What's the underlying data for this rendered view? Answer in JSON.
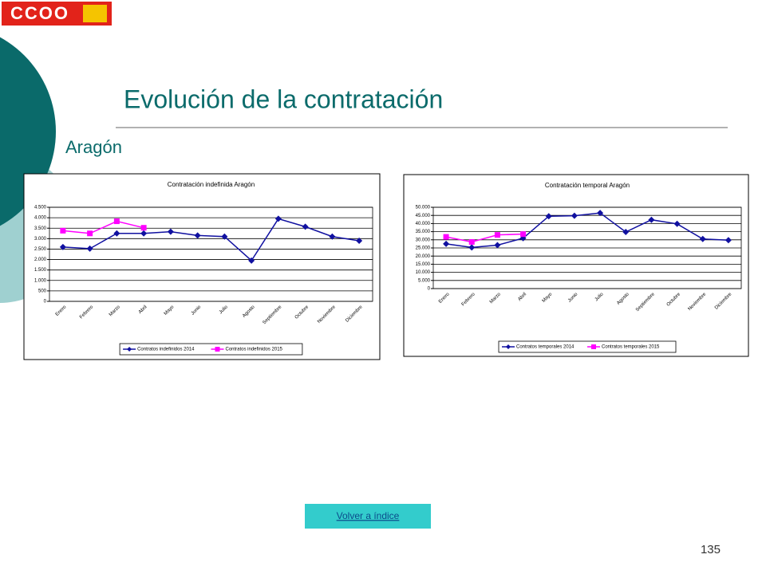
{
  "logo": "CCOO",
  "header": {
    "title": "Evolución de la contratación",
    "subtitle": "Aragón"
  },
  "chart_data": [
    {
      "type": "line",
      "title": "Contratación indefinida Aragón",
      "categories": [
        "Enero",
        "Febrero",
        "Marzo",
        "Abril",
        "Mayo",
        "Junio",
        "Julio",
        "Agosto",
        "Septiembre",
        "Octubre",
        "Noviembre",
        "Diciembre"
      ],
      "series": [
        {
          "name": "Contratos indefinidos 2014",
          "color": "#1010a0",
          "marker": "diamond",
          "values": [
            2600,
            2520,
            3250,
            3250,
            3330,
            3150,
            3100,
            1950,
            3950,
            3570,
            3100,
            2900
          ]
        },
        {
          "name": "Contratos indefinidos 2015",
          "color": "#ff00ff",
          "marker": "square",
          "values": [
            3380,
            3250,
            3830,
            3520,
            null,
            null,
            null,
            null,
            null,
            null,
            null,
            null
          ]
        }
      ],
      "ylim": [
        0,
        4500
      ],
      "yticks": [
        0,
        500,
        {
          "value": 1000,
          "label": "1.000"
        },
        {
          "value": 1500,
          "label": "1.500"
        },
        {
          "value": 2000,
          "label": "2.000"
        },
        {
          "value": 2500,
          "label": "2.500"
        },
        {
          "value": 3000,
          "label": "3.000"
        },
        {
          "value": 3500,
          "label": "3.500"
        },
        {
          "value": 4000,
          "label": "4.000"
        },
        {
          "value": 4500,
          "label": "4.500"
        }
      ],
      "grid": true,
      "legend": "bottom"
    },
    {
      "type": "line",
      "title": "Contratación temporal Aragón",
      "categories": [
        "Enero",
        "Febrero",
        "Marzo",
        "Abril",
        "Mayo",
        "Junio",
        "Julio",
        "Agosto",
        "Septiembre",
        "Octubre",
        "Noviembre",
        "Diciembre"
      ],
      "series": [
        {
          "name": "Contratos temporales 2014",
          "color": "#1010a0",
          "marker": "diamond",
          "values": [
            27500,
            25300,
            26700,
            31000,
            44500,
            44800,
            46500,
            34800,
            42300,
            39800,
            30500,
            29800
          ]
        },
        {
          "name": "Contratos temporales 2015",
          "color": "#ff00ff",
          "marker": "square",
          "values": [
            31800,
            28700,
            33000,
            33500,
            null,
            null,
            null,
            null,
            null,
            null,
            null,
            null
          ]
        }
      ],
      "ylim": [
        0,
        50000
      ],
      "yticks": [
        0,
        {
          "value": 5000,
          "label": "5.000"
        },
        {
          "value": 10000,
          "label": "10.000"
        },
        {
          "value": 15000,
          "label": "15.000"
        },
        {
          "value": 20000,
          "label": "20.000"
        },
        {
          "value": 25000,
          "label": "25.000"
        },
        {
          "value": 30000,
          "label": "30.000"
        },
        {
          "value": 35000,
          "label": "35.000"
        },
        {
          "value": 40000,
          "label": "40.000"
        },
        {
          "value": 45000,
          "label": "45.000"
        },
        {
          "value": 50000,
          "label": "50.000"
        }
      ],
      "grid": true,
      "legend": "bottom"
    }
  ],
  "link": "Volver a índice",
  "page_number": "135"
}
